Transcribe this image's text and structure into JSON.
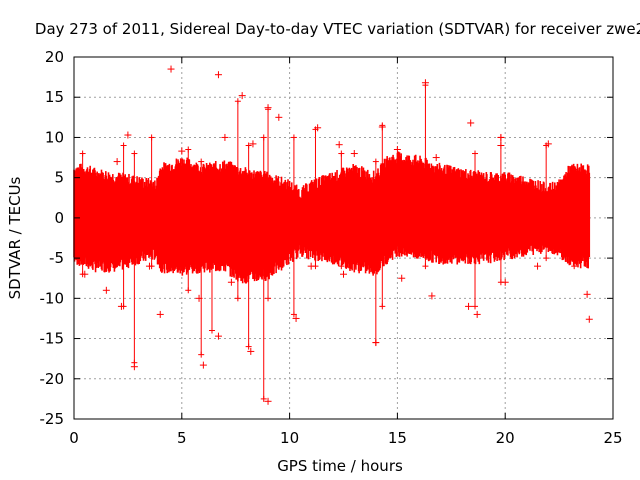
{
  "chart_data": {
    "type": "scatter",
    "title": "Day 273 of 2011, Sidereal Day-to-day VTEC variation (SDTVAR) for receiver zwe2",
    "xlabel": "GPS time / hours",
    "ylabel": "SDTVAR / TECUs",
    "xlim": [
      0,
      25
    ],
    "ylim": [
      -25,
      20
    ],
    "xticks": [
      0,
      5,
      10,
      15,
      20,
      25
    ],
    "yticks": [
      -25,
      -20,
      -15,
      -10,
      -5,
      0,
      5,
      10,
      15,
      20
    ],
    "grid": true,
    "marker": "+",
    "series_color": "#ff0000",
    "envelope": {
      "description_hours": "approximate upper/lower bounds of the dense point band",
      "x": [
        0,
        0.5,
        1,
        2,
        3,
        3.8,
        4,
        5,
        6,
        7,
        7.5,
        8,
        9,
        10,
        10.5,
        11,
        12,
        13,
        14,
        14.5,
        15,
        16,
        17,
        18,
        19,
        20,
        21,
        22,
        22.5,
        23,
        23.9
      ],
      "upper": [
        6,
        6,
        5.5,
        5,
        4.5,
        4,
        6,
        7,
        6,
        6.5,
        6,
        5.5,
        5,
        4,
        3,
        4,
        5,
        6,
        5,
        7,
        7.5,
        7,
        6,
        5.5,
        5,
        5,
        4.5,
        3.5,
        4,
        6,
        6
      ],
      "lower": [
        -5,
        -5.5,
        -6,
        -6,
        -5,
        -4.5,
        -6,
        -6.5,
        -6,
        -6,
        -7,
        -7.5,
        -7,
        -5,
        -4,
        -4.5,
        -5,
        -6,
        -6.5,
        -5,
        -4,
        -4.5,
        -5,
        -5,
        -5,
        -4.5,
        -4,
        -3.5,
        -4,
        -5.5,
        -5.5
      ]
    },
    "outliers": [
      {
        "x": 4.5,
        "y": 18.5
      },
      {
        "x": 6.7,
        "y": 17.8
      },
      {
        "x": 16.3,
        "y": 16.8
      },
      {
        "x": 7.8,
        "y": 15.2
      },
      {
        "x": 9.0,
        "y": 13.7
      },
      {
        "x": 9.5,
        "y": 12.5
      },
      {
        "x": 14.3,
        "y": 11.3
      },
      {
        "x": 18.4,
        "y": 11.8
      },
      {
        "x": 11.3,
        "y": 11.2
      },
      {
        "x": 19.8,
        "y": 10.0
      },
      {
        "x": 2.5,
        "y": 10.3
      },
      {
        "x": 7.0,
        "y": 10.0
      },
      {
        "x": 8.3,
        "y": 9.2
      },
      {
        "x": 12.3,
        "y": 9.1
      },
      {
        "x": 19.8,
        "y": 9.0
      },
      {
        "x": 16.8,
        "y": 7.5
      },
      {
        "x": 5.0,
        "y": 8.3
      },
      {
        "x": 13.0,
        "y": 8.0
      },
      {
        "x": 22.0,
        "y": 9.2
      },
      {
        "x": 2.0,
        "y": 7.0
      },
      {
        "x": 15.0,
        "y": 8.5
      },
      {
        "x": 9.0,
        "y": -22.8
      },
      {
        "x": 2.8,
        "y": -18.5
      },
      {
        "x": 6.0,
        "y": -18.3
      },
      {
        "x": 8.2,
        "y": -16.6
      },
      {
        "x": 14.0,
        "y": -15.5
      },
      {
        "x": 6.7,
        "y": -14.7
      },
      {
        "x": 23.9,
        "y": -12.6
      },
      {
        "x": 4.0,
        "y": -12.0
      },
      {
        "x": 18.7,
        "y": -12.0
      },
      {
        "x": 10.3,
        "y": -12.5
      },
      {
        "x": 2.2,
        "y": -11.0
      },
      {
        "x": 23.8,
        "y": -9.5
      },
      {
        "x": 16.6,
        "y": -9.7
      },
      {
        "x": 18.3,
        "y": -11.0
      },
      {
        "x": 3.5,
        "y": -6.0
      },
      {
        "x": 5.8,
        "y": -10.0
      },
      {
        "x": 7.3,
        "y": -8.0
      },
      {
        "x": 11.0,
        "y": -6.0
      },
      {
        "x": 20.0,
        "y": -8.0
      },
      {
        "x": 1.5,
        "y": -9.0
      },
      {
        "x": 12.5,
        "y": -7.0
      },
      {
        "x": 15.2,
        "y": -7.5
      },
      {
        "x": 21.5,
        "y": -6.0
      },
      {
        "x": 0.5,
        "y": -7.0
      }
    ],
    "spikes": [
      {
        "x": 0.4,
        "lo": -7,
        "hi": 8
      },
      {
        "x": 2.3,
        "lo": -11,
        "hi": 9
      },
      {
        "x": 2.8,
        "lo": -18,
        "hi": 8
      },
      {
        "x": 3.6,
        "lo": -6,
        "hi": 10
      },
      {
        "x": 5.3,
        "lo": -9,
        "hi": 8.5
      },
      {
        "x": 5.9,
        "lo": -17,
        "hi": 7
      },
      {
        "x": 6.4,
        "lo": -14,
        "hi": 6
      },
      {
        "x": 7.6,
        "lo": -10,
        "hi": 14.5
      },
      {
        "x": 8.1,
        "lo": -16,
        "hi": 9
      },
      {
        "x": 8.8,
        "lo": -22.5,
        "hi": 10
      },
      {
        "x": 9.0,
        "lo": -10,
        "hi": 13.5
      },
      {
        "x": 10.2,
        "lo": -12,
        "hi": 10
      },
      {
        "x": 11.2,
        "lo": -6,
        "hi": 11
      },
      {
        "x": 12.4,
        "lo": -6,
        "hi": 8
      },
      {
        "x": 14.0,
        "lo": -15.5,
        "hi": 7
      },
      {
        "x": 14.3,
        "lo": -11,
        "hi": 11.5
      },
      {
        "x": 16.3,
        "lo": -6,
        "hi": 16.5
      },
      {
        "x": 18.6,
        "lo": -11,
        "hi": 8
      },
      {
        "x": 19.8,
        "lo": -8,
        "hi": 10
      },
      {
        "x": 21.9,
        "lo": -5,
        "hi": 9
      },
      {
        "x": 23.2,
        "lo": -6,
        "hi": 6
      }
    ]
  }
}
